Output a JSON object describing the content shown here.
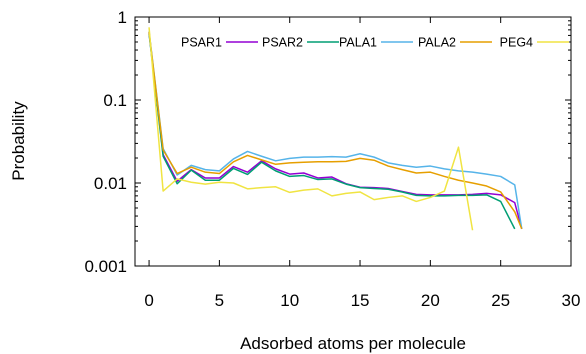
{
  "chart_data": {
    "type": "line",
    "xlabel": "Adsorbed atoms per molecule",
    "ylabel": "Probability",
    "xlim": [
      -1,
      30
    ],
    "ylim": [
      0.001,
      1
    ],
    "yscale": "log",
    "x_ticks": [
      0,
      5,
      10,
      15,
      20,
      25,
      30
    ],
    "x_tick_labels": [
      "0",
      "5",
      "10",
      "15",
      "20",
      "25",
      "30"
    ],
    "y_ticks": [
      0.001,
      0.01,
      0.1,
      1
    ],
    "y_tick_labels": [
      "0.001",
      "0.01",
      "0.1",
      "1"
    ],
    "grid": false,
    "legend_position": "top",
    "series": [
      {
        "name": "PSAR1",
        "color": "#9400D3",
        "x": [
          0,
          1,
          2,
          3,
          4,
          5,
          6,
          7,
          8,
          9,
          10,
          11,
          12,
          13,
          14,
          15,
          16,
          17,
          18,
          19,
          20,
          21,
          22,
          23,
          24,
          25,
          26,
          26.5
        ],
        "y": [
          0.65,
          0.022,
          0.0105,
          0.0145,
          0.0115,
          0.0115,
          0.0158,
          0.0135,
          0.0185,
          0.0148,
          0.0128,
          0.0132,
          0.0115,
          0.0118,
          0.0098,
          0.0089,
          0.0088,
          0.0086,
          0.0079,
          0.0073,
          0.0072,
          0.0072,
          0.0072,
          0.0073,
          0.0075,
          0.0072,
          0.0058,
          0.0028
        ]
      },
      {
        "name": "PSAR2",
        "color": "#009E73",
        "x": [
          0,
          1,
          2,
          3,
          4,
          5,
          6,
          7,
          8,
          9,
          10,
          11,
          12,
          13,
          14,
          15,
          16,
          17,
          18,
          19,
          20,
          21,
          22,
          23,
          24,
          25,
          26
        ],
        "y": [
          0.63,
          0.021,
          0.0098,
          0.0143,
          0.0108,
          0.0108,
          0.015,
          0.0127,
          0.0178,
          0.014,
          0.012,
          0.0123,
          0.011,
          0.0112,
          0.0097,
          0.0088,
          0.0086,
          0.0084,
          0.0078,
          0.0071,
          0.007,
          0.007,
          0.0071,
          0.0071,
          0.0072,
          0.006,
          0.0028
        ]
      },
      {
        "name": "PALA1",
        "color": "#56B4E9",
        "x": [
          0,
          1,
          2,
          3,
          4,
          5,
          6,
          7,
          8,
          9,
          10,
          11,
          12,
          13,
          14,
          15,
          16,
          17,
          18,
          19,
          20,
          21,
          22,
          23,
          24,
          25,
          26,
          26.5
        ],
        "y": [
          0.67,
          0.026,
          0.0125,
          0.0163,
          0.0145,
          0.014,
          0.0195,
          0.024,
          0.021,
          0.0185,
          0.0198,
          0.0205,
          0.0205,
          0.0208,
          0.0205,
          0.0225,
          0.0205,
          0.0175,
          0.0163,
          0.0155,
          0.016,
          0.0148,
          0.014,
          0.0135,
          0.0128,
          0.012,
          0.0095,
          0.0028
        ]
      },
      {
        "name": "PALA2",
        "color": "#E69F00",
        "x": [
          0,
          1,
          2,
          3,
          4,
          5,
          6,
          7,
          8,
          9,
          10,
          11,
          12,
          13,
          14,
          15,
          16,
          17,
          18,
          19,
          20,
          21,
          22,
          23,
          24,
          25,
          26,
          26.5
        ],
        "y": [
          0.66,
          0.025,
          0.013,
          0.0155,
          0.0135,
          0.013,
          0.018,
          0.0215,
          0.019,
          0.0168,
          0.0175,
          0.0178,
          0.018,
          0.018,
          0.0182,
          0.0198,
          0.0188,
          0.016,
          0.0145,
          0.0132,
          0.0135,
          0.012,
          0.0108,
          0.01,
          0.0092,
          0.0078,
          0.0045,
          0.0028
        ]
      },
      {
        "name": "PEG4",
        "color": "#F0E442",
        "x": [
          0,
          1,
          2,
          3,
          4,
          5,
          6,
          7,
          8,
          9,
          10,
          11,
          12,
          13,
          14,
          15,
          16,
          17,
          18,
          19,
          20,
          21,
          22,
          23
        ],
        "y": [
          0.75,
          0.008,
          0.0112,
          0.0102,
          0.0097,
          0.0102,
          0.01,
          0.0085,
          0.0088,
          0.009,
          0.0077,
          0.0082,
          0.0085,
          0.007,
          0.0075,
          0.0078,
          0.0063,
          0.0067,
          0.007,
          0.006,
          0.0067,
          0.008,
          0.027,
          0.0027
        ]
      }
    ]
  }
}
